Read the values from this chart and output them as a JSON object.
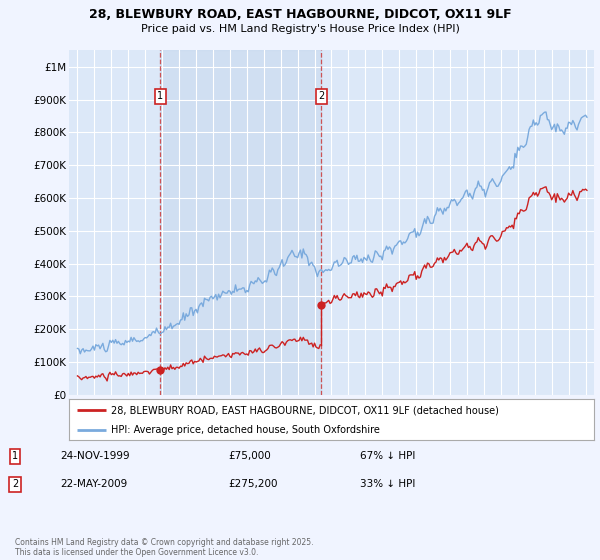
{
  "title_line1": "28, BLEWBURY ROAD, EAST HAGBOURNE, DIDCOT, OX11 9LF",
  "title_line2": "Price paid vs. HM Land Registry's House Price Index (HPI)",
  "background_color": "#f0f4ff",
  "plot_bg_color": "#dce8f8",
  "hpi_color": "#7aaadd",
  "price_color": "#cc2222",
  "marker1_x": 1999.9,
  "marker2_x": 2009.4,
  "marker1_price": 75000,
  "marker2_price": 275200,
  "sale1_date": "24-NOV-1999",
  "sale1_amount": "£75,000",
  "sale1_hpi": "67% ↓ HPI",
  "sale2_date": "22-MAY-2009",
  "sale2_amount": "£275,200",
  "sale2_hpi": "33% ↓ HPI",
  "legend_line1": "28, BLEWBURY ROAD, EAST HAGBOURNE, DIDCOT, OX11 9LF (detached house)",
  "legend_line2": "HPI: Average price, detached house, South Oxfordshire",
  "footer": "Contains HM Land Registry data © Crown copyright and database right 2025.\nThis data is licensed under the Open Government Licence v3.0.",
  "ylim": [
    0,
    1050000
  ],
  "yticks": [
    0,
    100000,
    200000,
    300000,
    400000,
    500000,
    600000,
    700000,
    800000,
    900000,
    1000000
  ],
  "xlim": [
    1994.5,
    2025.5
  ],
  "shade_x1": 1999.9,
  "shade_x2": 2009.4
}
